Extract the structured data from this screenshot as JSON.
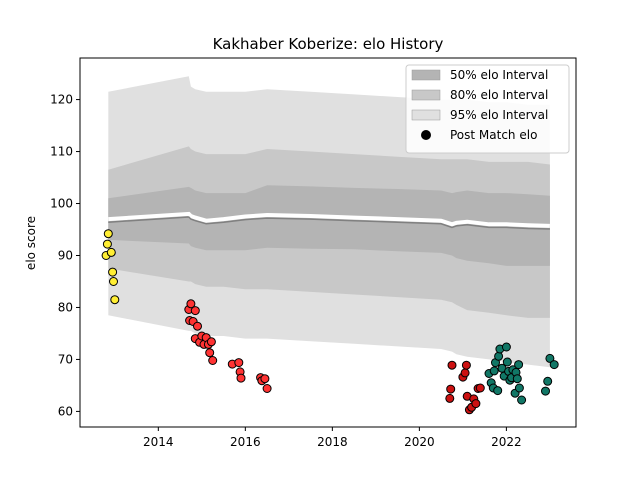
{
  "chart_data": {
    "type": "scatter",
    "title": "Kakhaber Koberize: elo History",
    "xlabel": "",
    "ylabel": "elo score",
    "xlim": [
      2012.2,
      2023.6
    ],
    "ylim": [
      57,
      128
    ],
    "x_ticks": [
      2014,
      2016,
      2018,
      2020,
      2022
    ],
    "y_ticks": [
      60,
      70,
      80,
      90,
      100,
      110,
      120
    ],
    "legend_position": "top-right",
    "legend": [
      {
        "label": "50% elo Interval",
        "color": "#b4b4b4"
      },
      {
        "label": "80% elo Interval",
        "color": "#c8c8c8"
      },
      {
        "label": "95% elo Interval",
        "color": "#e0e0e0"
      },
      {
        "label": "Post Match elo",
        "color": "#000000"
      }
    ],
    "intervals": {
      "x": [
        2012.85,
        2014.7,
        2014.75,
        2014.85,
        2015.1,
        2015.5,
        2016.0,
        2016.5,
        2017.5,
        2018.5,
        2019.5,
        2020.5,
        2020.75,
        2020.85,
        2021.1,
        2021.6,
        2022.0,
        2022.5,
        2023.0
      ],
      "center": [
        97.0,
        98.0,
        97.6,
        97.3,
        96.7,
        97.0,
        97.5,
        97.8,
        97.6,
        97.3,
        97.0,
        96.7,
        96.0,
        96.3,
        96.5,
        96.0,
        96.0,
        95.8,
        95.7
      ],
      "band50": [
        [
          93.0,
          101.0
        ],
        [
          92.3,
          103.2
        ],
        [
          91.8,
          103.0
        ],
        [
          91.5,
          102.5
        ],
        [
          91.0,
          102.0
        ],
        [
          91.0,
          102.0
        ],
        [
          91.0,
          102.0
        ],
        [
          91.5,
          103.5
        ],
        [
          91.3,
          103.3
        ],
        [
          91.2,
          103.0
        ],
        [
          90.8,
          102.8
        ],
        [
          90.5,
          102.5
        ],
        [
          90.0,
          102.0
        ],
        [
          89.5,
          102.2
        ],
        [
          89.0,
          102.5
        ],
        [
          88.5,
          102.0
        ],
        [
          88.0,
          102.0
        ],
        [
          88.0,
          101.8
        ],
        [
          88.0,
          101.5
        ]
      ],
      "band80": [
        [
          87.5,
          106.5
        ],
        [
          85.0,
          111.0
        ],
        [
          85.0,
          110.5
        ],
        [
          84.5,
          110.0
        ],
        [
          84.0,
          109.5
        ],
        [
          84.0,
          109.5
        ],
        [
          83.5,
          109.5
        ],
        [
          83.5,
          110.5
        ],
        [
          83.0,
          110.0
        ],
        [
          82.5,
          109.5
        ],
        [
          82.0,
          109.0
        ],
        [
          81.5,
          108.5
        ],
        [
          81.0,
          108.5
        ],
        [
          80.5,
          108.5
        ],
        [
          79.5,
          108.5
        ],
        [
          79.0,
          108.0
        ],
        [
          78.5,
          108.0
        ],
        [
          78.0,
          108.0
        ],
        [
          78.0,
          107.5
        ]
      ],
      "band95": [
        [
          78.5,
          121.5
        ],
        [
          75.5,
          124.5
        ],
        [
          75.5,
          122.5
        ],
        [
          75.0,
          122.0
        ],
        [
          74.5,
          121.5
        ],
        [
          74.5,
          121.5
        ],
        [
          74.0,
          121.5
        ],
        [
          74.0,
          122.0
        ],
        [
          73.5,
          121.5
        ],
        [
          73.0,
          121.0
        ],
        [
          72.5,
          120.5
        ],
        [
          72.0,
          120.0
        ],
        [
          71.5,
          120.0
        ],
        [
          71.0,
          120.0
        ],
        [
          70.5,
          120.0
        ],
        [
          70.0,
          119.5
        ],
        [
          69.5,
          119.5
        ],
        [
          69.0,
          119.0
        ],
        [
          68.5,
          119.0
        ]
      ]
    },
    "series": [
      {
        "color": "#ffee33",
        "points": [
          [
            2012.8,
            90.0
          ],
          [
            2012.85,
            94.2
          ],
          [
            2012.83,
            92.2
          ],
          [
            2012.92,
            90.6
          ],
          [
            2012.95,
            86.8
          ],
          [
            2012.97,
            85.0
          ],
          [
            2013.0,
            81.5
          ]
        ]
      },
      {
        "color": "#ff3333",
        "points": [
          [
            2014.7,
            79.6
          ],
          [
            2014.75,
            80.7
          ],
          [
            2014.85,
            79.4
          ],
          [
            2014.72,
            77.5
          ],
          [
            2014.8,
            77.3
          ],
          [
            2014.9,
            76.4
          ],
          [
            2014.85,
            74.0
          ],
          [
            2014.95,
            73.3
          ],
          [
            2015.0,
            74.5
          ],
          [
            2015.05,
            72.9
          ],
          [
            2015.1,
            74.2
          ],
          [
            2015.15,
            72.9
          ],
          [
            2015.22,
            73.4
          ],
          [
            2015.18,
            71.3
          ],
          [
            2015.25,
            69.8
          ],
          [
            2015.7,
            69.1
          ],
          [
            2015.85,
            69.4
          ],
          [
            2015.88,
            67.6
          ],
          [
            2015.9,
            66.4
          ],
          [
            2016.35,
            66.5
          ],
          [
            2016.38,
            65.9
          ],
          [
            2016.45,
            66.3
          ],
          [
            2016.5,
            64.4
          ]
        ]
      },
      {
        "color": "#cc1111",
        "points": [
          [
            2020.7,
            62.5
          ],
          [
            2020.72,
            64.3
          ],
          [
            2020.75,
            68.9
          ],
          [
            2021.0,
            66.6
          ],
          [
            2021.05,
            67.4
          ],
          [
            2021.08,
            68.9
          ],
          [
            2021.1,
            62.9
          ],
          [
            2021.15,
            60.3
          ],
          [
            2021.2,
            60.8
          ],
          [
            2021.25,
            62.4
          ],
          [
            2021.3,
            61.5
          ],
          [
            2021.35,
            64.4
          ],
          [
            2021.4,
            64.5
          ]
        ]
      },
      {
        "color": "#117766",
        "points": [
          [
            2021.6,
            67.3
          ],
          [
            2021.65,
            65.5
          ],
          [
            2021.7,
            64.5
          ],
          [
            2021.72,
            67.8
          ],
          [
            2021.75,
            69.4
          ],
          [
            2021.8,
            64.0
          ],
          [
            2021.82,
            70.6
          ],
          [
            2021.85,
            72.0
          ],
          [
            2021.9,
            68.3
          ],
          [
            2021.95,
            66.8
          ],
          [
            2022.0,
            72.4
          ],
          [
            2022.02,
            69.5
          ],
          [
            2022.05,
            67.7
          ],
          [
            2022.08,
            66.0
          ],
          [
            2022.12,
            66.5
          ],
          [
            2022.15,
            68.0
          ],
          [
            2022.2,
            63.5
          ],
          [
            2022.22,
            67.5
          ],
          [
            2022.25,
            66.3
          ],
          [
            2022.28,
            69.0
          ],
          [
            2022.3,
            64.5
          ],
          [
            2022.35,
            62.2
          ],
          [
            2022.9,
            63.9
          ],
          [
            2022.95,
            65.8
          ],
          [
            2023.0,
            70.2
          ],
          [
            2023.1,
            69.0
          ]
        ]
      }
    ]
  }
}
